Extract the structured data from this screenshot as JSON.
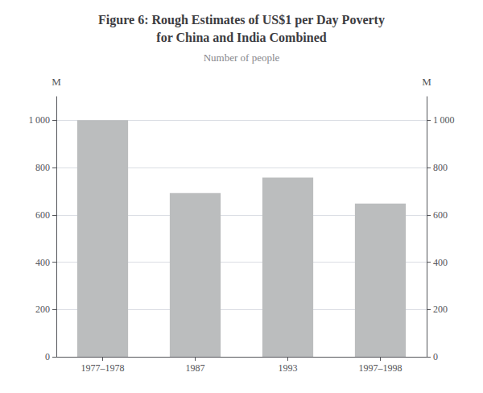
{
  "chart_data": {
    "type": "bar",
    "title": "Figure 6: Rough Estimates of US$1 per Day Poverty\nfor China and India Combined",
    "subtitle": "Number of people",
    "categories": [
      "1977–1978",
      "1987",
      "1993",
      "1997–1998"
    ],
    "values": [
      1000,
      692,
      758,
      648
    ],
    "color": "#BBBDBE",
    "ylabel": "M",
    "y2label": "M",
    "ylim": [
      0,
      1100
    ],
    "yticks": [
      0,
      200,
      400,
      600,
      800,
      {
        "value": 1000,
        "label": "1 000"
      }
    ],
    "y2lim": [
      0,
      1100
    ],
    "y2ticks": [
      0,
      200,
      400,
      600,
      800,
      {
        "value": 1000,
        "label": "1 000"
      }
    ],
    "grid": true
  }
}
